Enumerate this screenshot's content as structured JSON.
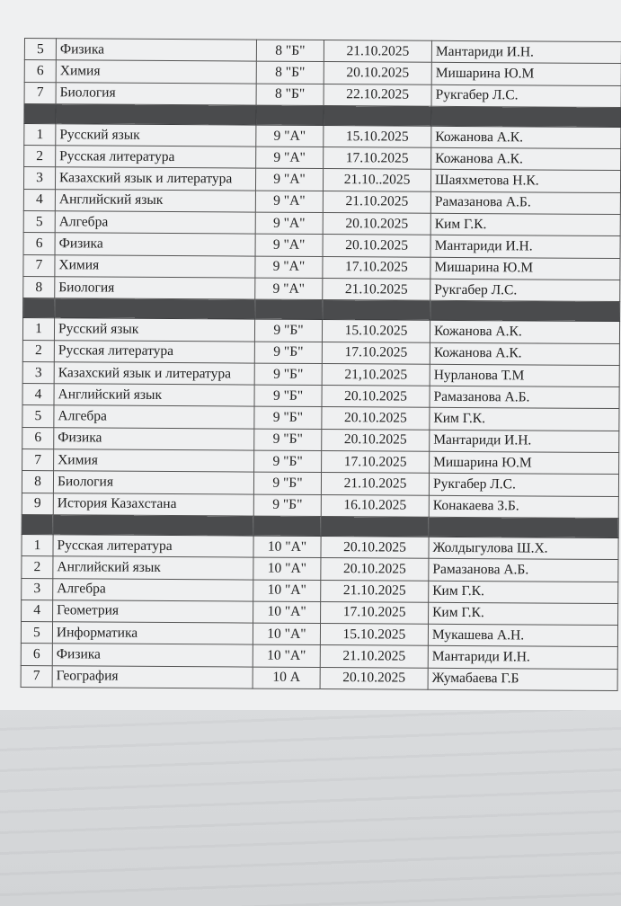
{
  "colors": {
    "separator": "#4a4b4d",
    "paper": "#eff0f1",
    "border": "#555555"
  },
  "table": {
    "groups": [
      {
        "rows": [
          [
            "5",
            "Физика",
            "8 \"Б\"",
            "21.10.2025",
            "Мантариди И.Н."
          ],
          [
            "6",
            "Химия",
            "8 \"Б\"",
            "20.10.2025",
            "Мишарина Ю.М"
          ],
          [
            "7",
            "Биология",
            "8 \"Б\"",
            "22.10.2025",
            "Рукгабер Л.С."
          ]
        ]
      },
      {
        "rows": [
          [
            "1",
            "Русский язык",
            "9 \"А\"",
            "15.10.2025",
            "Кожанова А.К."
          ],
          [
            "2",
            "Русская литература",
            "9 \"А\"",
            "17.10.2025",
            "Кожанова А.К."
          ],
          [
            "3",
            "Казахский язык и литература",
            "9 \"А\"",
            "21.10..2025",
            "Шаяхметова Н.К."
          ],
          [
            "4",
            "Английский язык",
            "9 \"А\"",
            "21.10.2025",
            "Рамазанова А.Б."
          ],
          [
            "5",
            "Алгебра",
            "9 \"А\"",
            "20.10.2025",
            "Ким Г.К."
          ],
          [
            "6",
            "Физика",
            "9 \"А\"",
            "20.10.2025",
            "Мантариди И.Н."
          ],
          [
            "7",
            "Химия",
            "9 \"А\"",
            "17.10.2025",
            "Мишарина Ю.М"
          ],
          [
            "8",
            "Биология",
            "9 \"А\"",
            "21.10.2025",
            "Рукгабер Л.С."
          ]
        ]
      },
      {
        "rows": [
          [
            "1",
            "Русский язык",
            "9 \"Б\"",
            "15.10.2025",
            "Кожанова А.К."
          ],
          [
            "2",
            "Русская литература",
            "9 \"Б\"",
            "17.10.2025",
            "Кожанова А.К."
          ],
          [
            "3",
            "Казахский язык и литература",
            "9 \"Б\"",
            "21,10.2025",
            "Нурланова Т.М"
          ],
          [
            "4",
            "Английский язык",
            "9 \"Б\"",
            "20.10.2025",
            "Рамазанова А.Б."
          ],
          [
            "5",
            "Алгебра",
            "9 \"Б\"",
            "20.10.2025",
            "Ким Г.К."
          ],
          [
            "6",
            "Физика",
            "9 \"Б\"",
            "20.10.2025",
            "Мантариди И.Н."
          ],
          [
            "7",
            "Химия",
            "9 \"Б\"",
            "17.10.2025",
            "Мишарина Ю.М"
          ],
          [
            "8",
            "Биология",
            "9 \"Б\"",
            "21.10.2025",
            "Рукгабер Л.С."
          ],
          [
            "9",
            "История Казахстана",
            "9 \"Б\"",
            "16.10.2025",
            "Конакаева З.Б."
          ]
        ]
      },
      {
        "rows": [
          [
            "1",
            "Русская литература",
            "10 \"А\"",
            "20.10.2025",
            "Жолдыгулова Ш.Х."
          ],
          [
            "2",
            "Английский язык",
            "10 \"А\"",
            "20.10.2025",
            "Рамазанова А.Б."
          ],
          [
            "3",
            "Алгебра",
            "10 \"А\"",
            "21.10.2025",
            "Ким Г.К."
          ],
          [
            "4",
            "Геометрия",
            "10 \"А\"",
            "17.10.2025",
            "Ким Г.К."
          ],
          [
            "5",
            "Информатика",
            "10 \"А\"",
            "15.10.2025",
            "Мукашева А.Н."
          ],
          [
            "6",
            "Физика",
            "10 \"А\"",
            "21.10.2025",
            "Мантариди И.Н."
          ],
          [
            "7",
            "География",
            "10 А",
            "20.10.2025",
            "Жумабаева Г.Б"
          ]
        ]
      }
    ]
  }
}
